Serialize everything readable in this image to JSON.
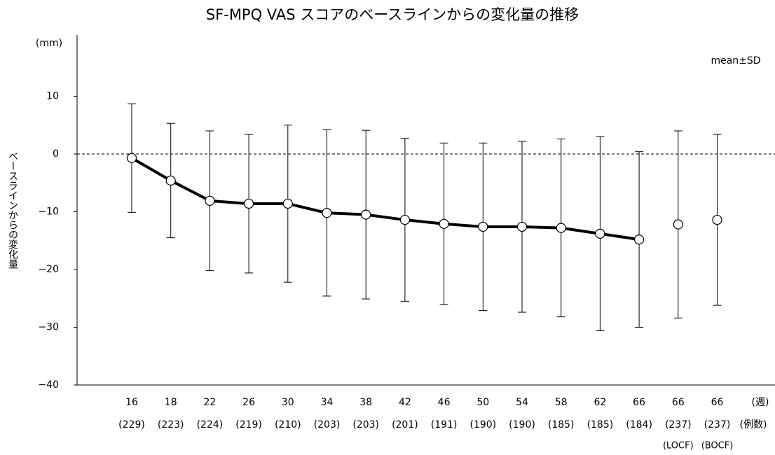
{
  "chart_data": {
    "type": "line",
    "title": "SF-MPQ VAS スコアのベースラインからの変化量の推移",
    "y_label": "ベースラインからの変化量",
    "y_unit": "(mm)",
    "annotation": "mean±SD",
    "x_unit": "(週)",
    "n_unit": "(例数)",
    "categories": [
      "16",
      "18",
      "22",
      "26",
      "30",
      "34",
      "38",
      "42",
      "46",
      "50",
      "54",
      "58",
      "62",
      "66",
      "66",
      "66"
    ],
    "n_labels": [
      "(229)",
      "(223)",
      "(224)",
      "(219)",
      "(210)",
      "(203)",
      "(203)",
      "(201)",
      "(191)",
      "(190)",
      "(190)",
      "(185)",
      "(185)",
      "(184)",
      "(237)",
      "(237)"
    ],
    "sublabels": [
      null,
      null,
      null,
      null,
      null,
      null,
      null,
      null,
      null,
      null,
      null,
      null,
      null,
      null,
      "(LOCF)",
      "(BOCF)"
    ],
    "series": [
      {
        "color": "#000000",
        "line": true,
        "values": [
          -0.7,
          -4.6,
          -8.1,
          -8.6,
          -8.6,
          -10.2,
          -10.5,
          -11.4,
          -12.1,
          -12.6,
          -12.6,
          -12.8,
          -13.8,
          -14.8,
          null,
          null
        ],
        "errors": [
          9.4,
          9.9,
          12.1,
          12.0,
          13.6,
          14.4,
          14.6,
          14.1,
          14.0,
          14.5,
          14.8,
          15.4,
          16.8,
          15.2,
          null,
          null
        ]
      },
      {
        "color": "#000000",
        "line": false,
        "values": [
          null,
          null,
          null,
          null,
          null,
          null,
          null,
          null,
          null,
          null,
          null,
          null,
          null,
          null,
          -12.2,
          -11.4
        ],
        "errors": [
          null,
          null,
          null,
          null,
          null,
          null,
          null,
          null,
          null,
          null,
          null,
          null,
          null,
          null,
          16.2,
          14.8
        ]
      }
    ],
    "ylim": [
      -40,
      20
    ],
    "yticks": [
      {
        "value": -40,
        "label": "−40"
      },
      {
        "value": -30,
        "label": "−30"
      },
      {
        "value": -20,
        "label": "−20"
      },
      {
        "value": -10,
        "label": "−10"
      },
      0,
      10
    ],
    "reference_line": 0
  }
}
